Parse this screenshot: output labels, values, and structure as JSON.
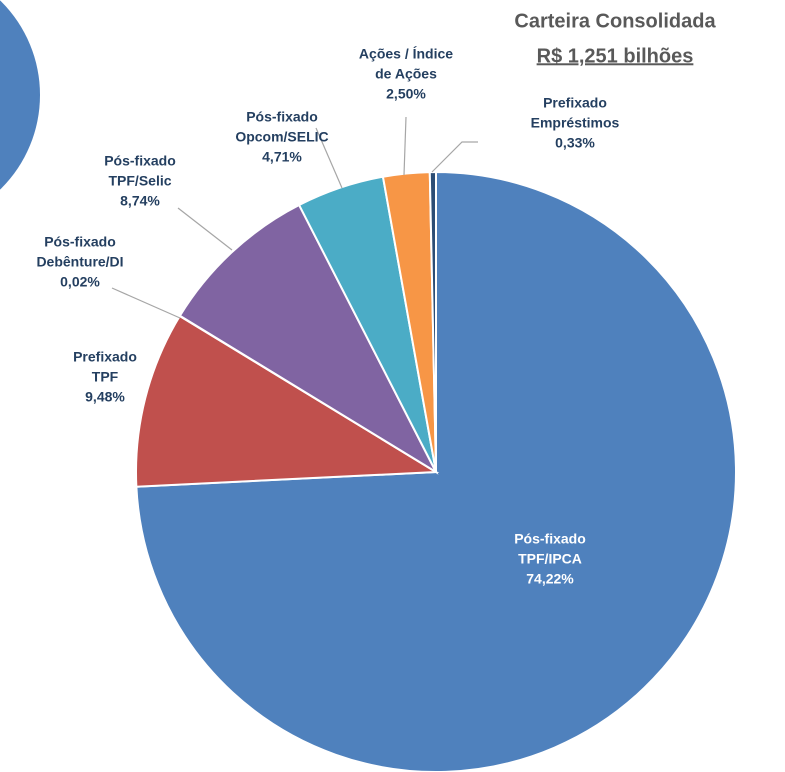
{
  "chart_data": {
    "type": "pie",
    "title": "Carteira Consolidada",
    "subtitle": "R$ 1,251 bilhões",
    "categories": [
      [
        "Pós-fixado",
        "TPF/IPCA"
      ],
      [
        "Prefixado",
        "TPF"
      ],
      [
        "Pós-fixado",
        "Debênture/DI"
      ],
      [
        "Pós-fixado",
        "TPF/Selic"
      ],
      [
        "Pós-fixado",
        "Opcom/SELIC"
      ],
      [
        "Ações / Índice",
        "de Ações"
      ],
      [
        "Prefixado",
        "Empréstimos"
      ]
    ],
    "values": [
      74.22,
      9.48,
      0.02,
      8.74,
      4.71,
      2.5,
      0.33
    ],
    "value_labels": [
      "74,22%",
      "9,48%",
      "0,02%",
      "8,74%",
      "4,71%",
      "2,50%",
      "0,33%"
    ],
    "colors": [
      "#4f81bd",
      "#c0504d",
      "#9bbb59",
      "#8064a2",
      "#4bacc6",
      "#f79646",
      "#2c4d75"
    ]
  }
}
